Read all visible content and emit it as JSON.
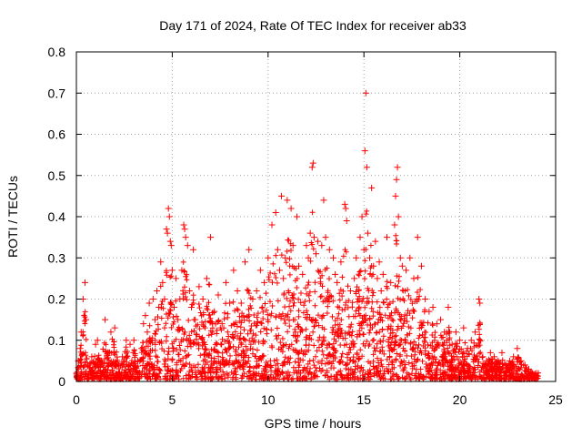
{
  "chart_data": {
    "type": "scatter",
    "title": "Day 171 of 2024, Rate Of TEC Index for receiver ab33",
    "xlabel": "GPS time / hours",
    "ylabel": "ROTI / TECUs",
    "xlim": [
      0,
      25
    ],
    "ylim": [
      0,
      0.8
    ],
    "xticks": [
      0,
      5,
      10,
      15,
      20,
      25
    ],
    "xtick_labels": [
      "0",
      "5",
      "10",
      "15",
      "20",
      "25"
    ],
    "yticks": [
      0,
      0.1,
      0.2,
      0.3,
      0.4,
      0.5,
      0.6,
      0.7,
      0.8
    ],
    "ytick_labels": [
      "0",
      "0.1",
      "0.2",
      "0.3",
      "0.4",
      "0.5",
      "0.6",
      "0.7",
      "0.8"
    ],
    "grid": true,
    "marker": "+",
    "marker_color": "#ff0000",
    "series": [
      {
        "name": "ROTI",
        "points": [
          [
            0.0,
            0.02
          ],
          [
            0.1,
            0.05
          ],
          [
            0.2,
            0.08
          ],
          [
            0.25,
            0.12
          ],
          [
            0.35,
            0.2
          ],
          [
            0.45,
            0.24
          ],
          [
            0.5,
            0.15
          ],
          [
            0.6,
            0.04
          ],
          [
            0.8,
            0.06
          ],
          [
            1.0,
            0.09
          ],
          [
            1.1,
            0.1
          ],
          [
            1.3,
            0.05
          ],
          [
            1.5,
            0.15
          ],
          [
            1.7,
            0.07
          ],
          [
            1.8,
            0.12
          ],
          [
            2.0,
            0.13
          ],
          [
            2.2,
            0.04
          ],
          [
            2.4,
            0.06
          ],
          [
            2.6,
            0.1
          ],
          [
            2.8,
            0.09
          ],
          [
            3.0,
            0.1
          ],
          [
            3.2,
            0.05
          ],
          [
            3.4,
            0.08
          ],
          [
            3.5,
            0.14
          ],
          [
            3.6,
            0.16
          ],
          [
            3.7,
            0.12
          ],
          [
            3.8,
            0.19
          ],
          [
            3.9,
            0.1
          ],
          [
            4.0,
            0.2
          ],
          [
            4.1,
            0.15
          ],
          [
            4.2,
            0.22
          ],
          [
            4.3,
            0.18
          ],
          [
            4.4,
            0.29
          ],
          [
            4.5,
            0.24
          ],
          [
            4.6,
            0.2
          ],
          [
            4.7,
            0.37
          ],
          [
            4.75,
            0.36
          ],
          [
            4.8,
            0.42
          ],
          [
            4.85,
            0.4
          ],
          [
            4.9,
            0.34
          ],
          [
            4.95,
            0.33
          ],
          [
            5.0,
            0.27
          ],
          [
            5.1,
            0.18
          ],
          [
            5.2,
            0.25
          ],
          [
            5.3,
            0.15
          ],
          [
            5.4,
            0.2
          ],
          [
            5.5,
            0.27
          ],
          [
            5.6,
            0.38
          ],
          [
            5.65,
            0.37
          ],
          [
            5.7,
            0.35
          ],
          [
            5.8,
            0.33
          ],
          [
            5.9,
            0.22
          ],
          [
            6.0,
            0.18
          ],
          [
            6.1,
            0.32
          ],
          [
            6.2,
            0.15
          ],
          [
            6.4,
            0.23
          ],
          [
            6.6,
            0.2
          ],
          [
            6.8,
            0.25
          ],
          [
            7.0,
            0.35
          ],
          [
            7.2,
            0.17
          ],
          [
            7.4,
            0.21
          ],
          [
            7.6,
            0.14
          ],
          [
            7.8,
            0.24
          ],
          [
            8.0,
            0.19
          ],
          [
            8.2,
            0.27
          ],
          [
            8.4,
            0.22
          ],
          [
            8.6,
            0.19
          ],
          [
            8.8,
            0.29
          ],
          [
            9.0,
            0.32
          ],
          [
            9.2,
            0.2
          ],
          [
            9.4,
            0.22
          ],
          [
            9.6,
            0.27
          ],
          [
            9.8,
            0.24
          ],
          [
            10.0,
            0.3
          ],
          [
            10.2,
            0.38
          ],
          [
            10.4,
            0.41
          ],
          [
            10.5,
            0.32
          ],
          [
            10.6,
            0.27
          ],
          [
            10.7,
            0.45
          ],
          [
            10.8,
            0.25
          ],
          [
            10.9,
            0.3
          ],
          [
            11.0,
            0.44
          ],
          [
            11.2,
            0.42
          ],
          [
            11.3,
            0.33
          ],
          [
            11.5,
            0.4
          ],
          [
            11.6,
            0.28
          ],
          [
            11.8,
            0.26
          ],
          [
            12.0,
            0.33
          ],
          [
            12.1,
            0.3
          ],
          [
            12.2,
            0.36
          ],
          [
            12.3,
            0.52
          ],
          [
            12.35,
            0.53
          ],
          [
            12.4,
            0.35
          ],
          [
            12.5,
            0.31
          ],
          [
            12.6,
            0.34
          ],
          [
            12.8,
            0.33
          ],
          [
            12.9,
            0.44
          ],
          [
            13.0,
            0.35
          ],
          [
            13.2,
            0.32
          ],
          [
            13.4,
            0.3
          ],
          [
            13.5,
            0.26
          ],
          [
            13.6,
            0.24
          ],
          [
            13.8,
            0.29
          ],
          [
            14.0,
            0.43
          ],
          [
            14.05,
            0.42
          ],
          [
            14.1,
            0.39
          ],
          [
            14.3,
            0.22
          ],
          [
            14.5,
            0.25
          ],
          [
            14.6,
            0.3
          ],
          [
            14.8,
            0.35
          ],
          [
            14.9,
            0.4
          ],
          [
            15.0,
            0.32
          ],
          [
            15.05,
            0.56
          ],
          [
            15.1,
            0.7
          ],
          [
            15.15,
            0.52
          ],
          [
            15.2,
            0.36
          ],
          [
            15.3,
            0.3
          ],
          [
            15.4,
            0.47
          ],
          [
            15.5,
            0.28
          ],
          [
            15.6,
            0.34
          ],
          [
            15.7,
            0.25
          ],
          [
            15.8,
            0.29
          ],
          [
            15.9,
            0.22
          ],
          [
            16.0,
            0.26
          ],
          [
            16.2,
            0.35
          ],
          [
            16.4,
            0.24
          ],
          [
            16.6,
            0.38
          ],
          [
            16.65,
            0.45
          ],
          [
            16.7,
            0.49
          ],
          [
            16.75,
            0.52
          ],
          [
            16.8,
            0.4
          ],
          [
            16.9,
            0.3
          ],
          [
            17.0,
            0.28
          ],
          [
            17.2,
            0.27
          ],
          [
            17.4,
            0.3
          ],
          [
            17.6,
            0.25
          ],
          [
            17.8,
            0.35
          ],
          [
            18.0,
            0.28
          ],
          [
            18.2,
            0.2
          ],
          [
            18.4,
            0.17
          ],
          [
            18.6,
            0.18
          ],
          [
            18.8,
            0.14
          ],
          [
            19.0,
            0.15
          ],
          [
            19.2,
            0.12
          ],
          [
            19.4,
            0.18
          ],
          [
            19.6,
            0.09
          ],
          [
            19.8,
            0.12
          ],
          [
            20.0,
            0.1
          ],
          [
            20.2,
            0.13
          ],
          [
            20.4,
            0.08
          ],
          [
            20.6,
            0.1
          ],
          [
            20.8,
            0.12
          ],
          [
            21.0,
            0.2
          ],
          [
            21.05,
            0.19
          ],
          [
            21.2,
            0.06
          ],
          [
            21.4,
            0.05
          ],
          [
            21.6,
            0.07
          ],
          [
            21.8,
            0.06
          ],
          [
            22.0,
            0.05
          ],
          [
            22.2,
            0.07
          ],
          [
            22.4,
            0.04
          ],
          [
            22.6,
            0.05
          ],
          [
            22.8,
            0.06
          ],
          [
            23.0,
            0.08
          ],
          [
            23.2,
            0.05
          ],
          [
            23.4,
            0.04
          ],
          [
            23.6,
            0.03
          ],
          [
            23.8,
            0.02
          ],
          [
            24.0,
            0.02
          ]
        ]
      }
    ]
  }
}
